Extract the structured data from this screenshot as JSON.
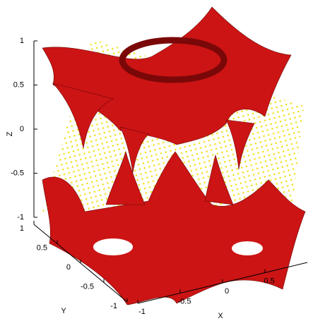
{
  "chart_data": {
    "type": "surface3d",
    "xlabel": "X",
    "ylabel": "Y",
    "zlabel": "Z",
    "xlim": [
      -1,
      1
    ],
    "ylim": [
      -1,
      1
    ],
    "zlim": [
      -1,
      1
    ],
    "xticks": [
      -1,
      -0.5,
      0,
      0.5
    ],
    "yticks": [
      -1,
      -0.5,
      0,
      0.5,
      1
    ],
    "zticks": [
      -1,
      -0.5,
      0,
      0.5,
      1
    ],
    "color": "#cc1414"
  }
}
